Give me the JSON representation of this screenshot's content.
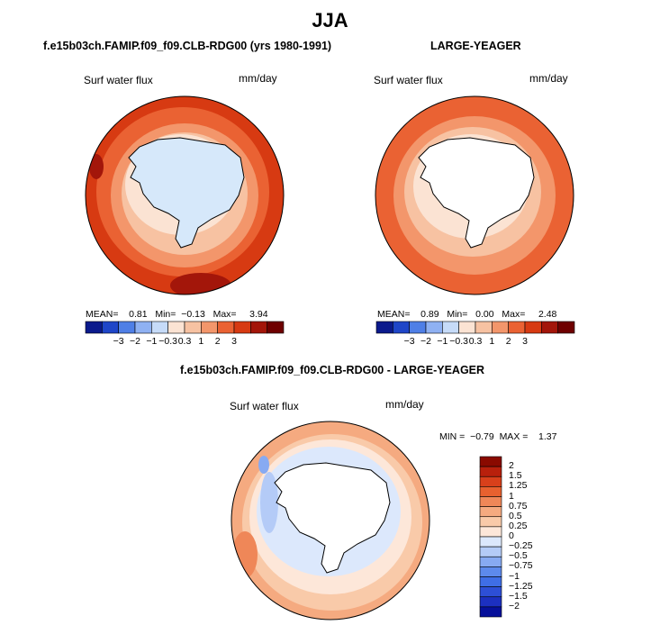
{
  "title": "JJA",
  "colors": {
    "land": "#ffffff",
    "coastline": "#000000",
    "scale_abs": [
      "#0b1a8c",
      "#1f46c8",
      "#4f7fe6",
      "#8fb1f2",
      "#c6dbf8",
      "#fbe3d3",
      "#f7c2a2",
      "#f3966b",
      "#ea6233",
      "#d73a12",
      "#a3160a",
      "#6e0000"
    ],
    "scale_diff": [
      "#06109a",
      "#1c30c0",
      "#2d4fd6",
      "#3f6ee6",
      "#5d8aec",
      "#87aaf2",
      "#b4cbf7",
      "#dce8fc",
      "#fde7d9",
      "#f9caa9",
      "#f5aa80",
      "#ef8758",
      "#e8612f",
      "#d8401b",
      "#b8200c",
      "#8a0a00"
    ]
  },
  "panels": [
    {
      "id": "model",
      "title": "f.e15b03ch.FAMIP.f09_f09.CLB-RDG00 (yrs 1980-1991)",
      "variable": "Surf water flux",
      "units": "mm/day",
      "stats": {
        "mean_label": "MEAN=",
        "mean": "0.81",
        "min_label": "Min=",
        "min": "−0.13",
        "max_label": "Max=",
        "max": "3.94"
      },
      "colorbar_ticks": [
        "−3",
        "−2",
        "−1",
        "−0.3",
        "0.3",
        "1",
        "2",
        "3"
      ]
    },
    {
      "id": "obs",
      "title": "LARGE-YEAGER",
      "variable": "Surf water flux",
      "units": "mm/day",
      "stats": {
        "mean_label": "MEAN=",
        "mean": "0.89",
        "min_label": "Min=",
        "min": "0.00",
        "max_label": "Max=",
        "max": "2.48"
      },
      "colorbar_ticks": [
        "−3",
        "−2",
        "−1",
        "−0.3",
        "0.3",
        "1",
        "2",
        "3"
      ]
    },
    {
      "id": "diff",
      "title": "f.e15b03ch.FAMIP.f09_f09.CLB-RDG00 - LARGE-YEAGER",
      "variable": "Surf water flux",
      "units": "mm/day",
      "stats": {
        "min_label": "MIN =",
        "min": "−0.79",
        "max_label": "MAX =",
        "max": "1.37"
      },
      "colorbar_ticks": [
        "2",
        "1.5",
        "1.25",
        "1",
        "0.75",
        "0.5",
        "0.25",
        "0",
        "−0.25",
        "−0.5",
        "−0.75",
        "−1",
        "−1.25",
        "−1.5",
        "−2"
      ]
    }
  ]
}
